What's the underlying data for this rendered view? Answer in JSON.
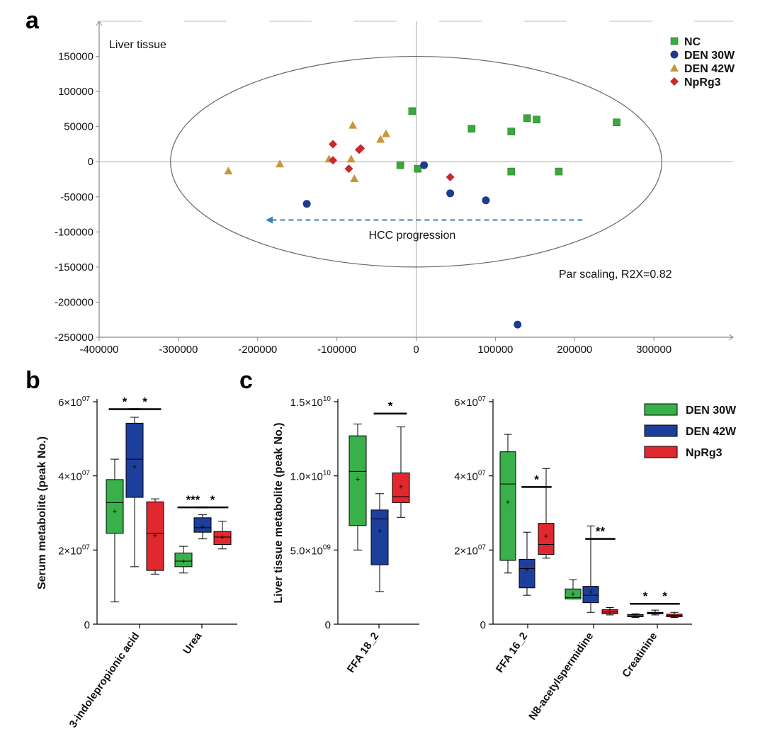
{
  "colors": {
    "NC": "#3aa83a",
    "DEN_30W_a": "#1f3b8f",
    "DEN_42W_a": "#c8973a",
    "NpRg3": "#c8282e",
    "box_green": "#3ab04a",
    "box_blue": "#1d3f9c",
    "box_red": "#e0282e",
    "arrow": "#3a7fc0"
  },
  "chart_data": [
    {
      "id": "a",
      "panel_label": "a",
      "type": "scatter",
      "title": "Liver tissue",
      "xlim": [
        -400000,
        400000
      ],
      "ylim": [
        -250000,
        200000
      ],
      "x_ticks": [
        -400000,
        -300000,
        -200000,
        -100000,
        0,
        100000,
        200000,
        300000
      ],
      "x_tick_labels": [
        "-400000",
        "-300000",
        "-200000",
        "-100000",
        "0",
        "100000",
        "200000",
        "300000"
      ],
      "y_ticks": [
        150000,
        100000,
        50000,
        0,
        -50000,
        -100000,
        -150000,
        -200000,
        -250000
      ],
      "y_tick_labels": [
        "150000",
        "100000",
        "50000",
        "0",
        "-50000",
        "-100000",
        "-150000",
        "-200000",
        "-250000"
      ],
      "annotations": [
        "HCC progression",
        "Par scaling, R2X=0.82"
      ],
      "ellipse": {
        "cx": 0,
        "cy": 0,
        "rx": 310000,
        "ry": 150000
      },
      "arrow": {
        "x_from": 210000,
        "x_to": -190000,
        "y": -83000
      },
      "series": [
        {
          "name": "NC",
          "marker": "square",
          "color_key": "NC",
          "points": [
            [
              -5000,
              72000
            ],
            [
              70000,
              47000
            ],
            [
              120000,
              43000
            ],
            [
              140000,
              62000
            ],
            [
              152000,
              60000
            ],
            [
              253000,
              56000
            ],
            [
              -20000,
              -5000
            ],
            [
              2000,
              -10000
            ],
            [
              120000,
              -14000
            ],
            [
              180000,
              -14000
            ]
          ]
        },
        {
          "name": "DEN 30W",
          "marker": "circle",
          "color_key": "DEN_30W_a",
          "points": [
            [
              10000,
              -5000
            ],
            [
              -138000,
              -60000
            ],
            [
              43000,
              -45000
            ],
            [
              88000,
              -55000
            ],
            [
              128000,
              -232000
            ]
          ]
        },
        {
          "name": "DEN 42W",
          "marker": "triangle",
          "color_key": "DEN_42W_a",
          "points": [
            [
              -237000,
              -13000
            ],
            [
              -172000,
              -3000
            ],
            [
              -80000,
              52000
            ],
            [
              -38000,
              40000
            ],
            [
              -45000,
              32000
            ],
            [
              -110000,
              4000
            ],
            [
              -82000,
              4000
            ],
            [
              -78000,
              -24000
            ]
          ]
        },
        {
          "name": "NpRg3",
          "marker": "diamond",
          "color_key": "NpRg3",
          "points": [
            [
              -105000,
              25000
            ],
            [
              -72000,
              17000
            ],
            [
              -70000,
              19000
            ],
            [
              -105000,
              2000
            ],
            [
              -85000,
              -10000
            ],
            [
              43000,
              -22000
            ]
          ]
        }
      ]
    },
    {
      "id": "b",
      "panel_label": "b",
      "type": "box",
      "ylabel": "Serum metabolite (peak No.)",
      "ylim": [
        0,
        60000000.0
      ],
      "y_ticks": [
        0,
        20000000.0,
        40000000.0,
        60000000.0
      ],
      "y_tick_labels": [
        {
          "base": "0",
          "exp": ""
        },
        {
          "base": "2×10",
          "exp": "07"
        },
        {
          "base": "4×10",
          "exp": "07"
        },
        {
          "base": "6×10",
          "exp": "07"
        }
      ],
      "categories": [
        "3-indolepropionic acid",
        "Urea"
      ],
      "groups": [
        {
          "category": 0,
          "color_key": "box_green",
          "min": 6000000.0,
          "q1": 24500000.0,
          "median": 32800000.0,
          "q3": 39000000.0,
          "max": 44500000.0,
          "mean": 30500000.0
        },
        {
          "category": 0,
          "color_key": "box_blue",
          "min": 15500000.0,
          "q1": 34200000.0,
          "median": 44500000.0,
          "q3": 54200000.0,
          "max": 55800000.0,
          "mean": 42500000.0
        },
        {
          "category": 0,
          "color_key": "box_red",
          "min": 13500000.0,
          "q1": 14500000.0,
          "median": 24500000.0,
          "q3": 33000000.0,
          "max": 33800000.0,
          "mean": 24000000.0
        },
        {
          "category": 1,
          "color_key": "box_green",
          "min": 13800000.0,
          "q1": 15500000.0,
          "median": 17000000.0,
          "q3": 19200000.0,
          "max": 21000000.0,
          "mean": 17000000.0
        },
        {
          "category": 1,
          "color_key": "box_blue",
          "min": 23000000.0,
          "q1": 24800000.0,
          "median": 26000000.0,
          "q3": 28700000.0,
          "max": 29500000.0,
          "mean": 26300000.0
        },
        {
          "category": 1,
          "color_key": "box_red",
          "min": 20300000.0,
          "q1": 21500000.0,
          "median": 23500000.0,
          "q3": 25000000.0,
          "max": 27800000.0,
          "mean": 23500000.0
        }
      ],
      "significance": [
        {
          "from": 0,
          "to": 1,
          "y": 58000000.0,
          "label": "*"
        },
        {
          "from": 1,
          "to": 2,
          "y": 58000000.0,
          "label": "*"
        },
        {
          "from": 3,
          "to": 4,
          "y": 31500000.0,
          "label": "***"
        },
        {
          "from": 4,
          "to": 5,
          "y": 31500000.0,
          "label": "*"
        }
      ]
    },
    {
      "id": "c1",
      "panel_label": "c",
      "type": "box",
      "ylabel": "Liver tissue metabolite (peak No.)",
      "ylim": [
        0,
        15000000000.0
      ],
      "y_ticks": [
        0,
        5000000000.0,
        10000000000.0,
        15000000000.0
      ],
      "y_tick_labels": [
        {
          "base": "0",
          "exp": ""
        },
        {
          "base": "5.0×10",
          "exp": "09"
        },
        {
          "base": "1.0×10",
          "exp": "10"
        },
        {
          "base": "1.5×10",
          "exp": "10"
        }
      ],
      "categories": [
        "FFA 18_2"
      ],
      "groups": [
        {
          "category": 0,
          "color_key": "box_green",
          "min": 5000000000.0,
          "q1": 6650000000.0,
          "median": 10300000000.0,
          "q3": 12700000000.0,
          "max": 13500000000.0,
          "mean": 9800000000.0
        },
        {
          "category": 0,
          "color_key": "box_blue",
          "min": 2200000000.0,
          "q1": 4000000000.0,
          "median": 7100000000.0,
          "q3": 7700000000.0,
          "max": 8800000000.0,
          "mean": 6300000000.0
        },
        {
          "category": 0,
          "color_key": "box_red",
          "min": 7200000000.0,
          "q1": 8200000000.0,
          "median": 8600000000.0,
          "q3": 10200000000.0,
          "max": 13300000000.0,
          "mean": 9300000000.0
        }
      ],
      "significance": [
        {
          "from": 1,
          "to": 2,
          "y": 14200000000.0,
          "label": "*"
        }
      ]
    },
    {
      "id": "c2",
      "panel_label": "",
      "type": "box",
      "ylabel": "",
      "ylim": [
        0,
        60000000.0
      ],
      "y_ticks": [
        0,
        20000000.0,
        40000000.0,
        60000000.0
      ],
      "y_tick_labels": [
        {
          "base": "0",
          "exp": ""
        },
        {
          "base": "2×10",
          "exp": "07"
        },
        {
          "base": "4×10",
          "exp": "07"
        },
        {
          "base": "6×10",
          "exp": "07"
        }
      ],
      "categories": [
        "FFA 16_2",
        "N8-acetylspermidine",
        "Creatinine"
      ],
      "legend": [
        {
          "label": "DEN 30W",
          "color_key": "box_green"
        },
        {
          "label": "DEN 42W",
          "color_key": "box_blue"
        },
        {
          "label": "NpRg3",
          "color_key": "box_red"
        }
      ],
      "groups": [
        {
          "category": 0,
          "color_key": "box_green",
          "min": 13800000.0,
          "q1": 17200000.0,
          "median": 37800000.0,
          "q3": 46500000.0,
          "max": 51200000.0,
          "mean": 33000000.0
        },
        {
          "category": 0,
          "color_key": "box_blue",
          "min": 7800000.0,
          "q1": 9800000.0,
          "median": 15000000.0,
          "q3": 17500000.0,
          "max": 24800000.0,
          "mean": 14800000.0
        },
        {
          "category": 0,
          "color_key": "box_red",
          "min": 17800000.0,
          "q1": 18800000.0,
          "median": 21500000.0,
          "q3": 27200000.0,
          "max": 42000000.0,
          "mean": 23800000.0
        },
        {
          "category": 1,
          "color_key": "box_green",
          "min": 6800000.0,
          "q1": 6800000.0,
          "median": 7200000.0,
          "q3": 9500000.0,
          "max": 12000000.0,
          "mean": 8200000.0
        },
        {
          "category": 1,
          "color_key": "box_blue",
          "min": 3200000.0,
          "q1": 5800000.0,
          "median": 7800000.0,
          "q3": 10200000.0,
          "max": 26500000.0,
          "mean": 8800000.0
        },
        {
          "category": 1,
          "color_key": "box_red",
          "min": 2500000.0,
          "q1": 2800000.0,
          "median": 3300000.0,
          "q3": 3900000.0,
          "max": 4500000.0,
          "mean": 3300000.0
        },
        {
          "category": 2,
          "color_key": "box_green",
          "min": 1800000.0,
          "q1": 2000000.0,
          "median": 2300000.0,
          "q3": 2600000.0,
          "max": 2800000.0,
          "mean": 2300000.0
        },
        {
          "category": 2,
          "color_key": "box_blue",
          "min": 2500000.0,
          "q1": 2800000.0,
          "median": 3000000.0,
          "q3": 3200000.0,
          "max": 3800000.0,
          "mean": 3000000.0
        },
        {
          "category": 2,
          "color_key": "box_red",
          "min": 1800000.0,
          "q1": 2000000.0,
          "median": 2400000.0,
          "q3": 2700000.0,
          "max": 3200000.0,
          "mean": 2400000.0
        }
      ],
      "significance": [
        {
          "from": 1,
          "to": 2,
          "y": 37000000.0,
          "label": "*"
        },
        {
          "from": 4,
          "to": 5,
          "y": 23000000.0,
          "label": "**"
        },
        {
          "from": 6,
          "to": 7,
          "y": 5500000.0,
          "label": "*"
        },
        {
          "from": 7,
          "to": 8,
          "y": 5500000.0,
          "label": "*"
        }
      ]
    }
  ]
}
